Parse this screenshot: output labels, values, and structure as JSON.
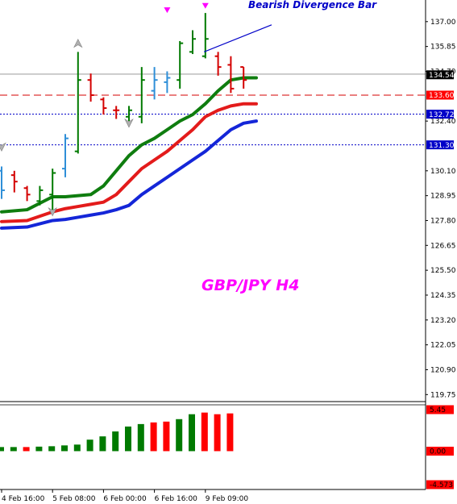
{
  "colors": {
    "background": "#ffffff",
    "axis": "#000000",
    "bull_bar": "#007a00",
    "bear_bar": "#d40000",
    "neutral_bar": "#2f8fd8",
    "ma_green": "#0f7d0f",
    "ma_red": "#e31b1b",
    "ma_blue": "#1426d8",
    "dashed_red": "#d40000",
    "dotted_blue": "#0000c8",
    "annotation": "#0000c8",
    "title": "#ff00ff",
    "osc_green": "#007a00",
    "osc_red": "#ff0000",
    "price_tag": "#000000",
    "tag_red": "#ff0000",
    "tag_blue": "#0000c8"
  },
  "chart_data": [
    {
      "type": "line",
      "panel": "price",
      "title": "GBP/JPY H4",
      "annotation": "Bearish Divergence Bar",
      "ylim": [
        119.5,
        138.0
      ],
      "y_ticks": [
        "137.00",
        "135.85",
        "134.70",
        "132.40",
        "130.10",
        "128.95",
        "127.80",
        "126.65",
        "125.50",
        "124.35",
        "123.20",
        "122.05",
        "120.90",
        "119.75"
      ],
      "x_ticks": [
        "4 Feb 16:00",
        "5 Feb 08:00",
        "6 Feb 00:00",
        "6 Feb 16:00",
        "9 Feb 09:00"
      ],
      "price_tags": [
        {
          "label": "134.54",
          "value": 134.54,
          "style": "current"
        },
        {
          "label": "133.60",
          "value": 133.6,
          "style": "red"
        },
        {
          "label": "132.72",
          "value": 132.72,
          "style": "blue"
        },
        {
          "label": "131.30",
          "value": 131.3,
          "style": "blue"
        }
      ],
      "bars": [
        {
          "o": 130.1,
          "h": 130.3,
          "l": 128.8,
          "c": 129.2,
          "color": "neutral"
        },
        {
          "o": 129.9,
          "h": 130.1,
          "l": 129.1,
          "c": 129.6,
          "color": "bear"
        },
        {
          "o": 129.3,
          "h": 129.4,
          "l": 128.7,
          "c": 129.0,
          "color": "bear"
        },
        {
          "o": 128.7,
          "h": 129.4,
          "l": 128.5,
          "c": 129.2,
          "color": "bull"
        },
        {
          "o": 129.0,
          "h": 130.2,
          "l": 128.3,
          "c": 130.0,
          "color": "bull"
        },
        {
          "o": 130.2,
          "h": 131.8,
          "l": 129.8,
          "c": 131.6,
          "color": "neutral"
        },
        {
          "o": 131.0,
          "h": 135.6,
          "l": 130.9,
          "c": 134.3,
          "color": "bull"
        },
        {
          "o": 134.3,
          "h": 134.6,
          "l": 133.3,
          "c": 133.6,
          "color": "bear"
        },
        {
          "o": 133.4,
          "h": 133.5,
          "l": 132.7,
          "c": 133.0,
          "color": "bear"
        },
        {
          "o": 132.9,
          "h": 133.1,
          "l": 132.5,
          "c": 132.9,
          "color": "bear"
        },
        {
          "o": 132.6,
          "h": 133.1,
          "l": 132.4,
          "c": 132.9,
          "color": "bull"
        },
        {
          "o": 132.6,
          "h": 134.9,
          "l": 132.3,
          "c": 134.3,
          "color": "bull"
        },
        {
          "o": 133.8,
          "h": 134.9,
          "l": 133.4,
          "c": 134.3,
          "color": "neutral"
        },
        {
          "o": 134.2,
          "h": 134.7,
          "l": 133.7,
          "c": 134.4,
          "color": "neutral"
        },
        {
          "o": 134.3,
          "h": 136.1,
          "l": 133.9,
          "c": 136.0,
          "color": "bull"
        },
        {
          "o": 135.6,
          "h": 136.6,
          "l": 135.5,
          "c": 136.2,
          "color": "bull"
        },
        {
          "o": 135.4,
          "h": 137.4,
          "l": 135.3,
          "c": 136.2,
          "color": "bull"
        },
        {
          "o": 135.4,
          "h": 135.6,
          "l": 134.5,
          "c": 134.9,
          "color": "bear"
        },
        {
          "o": 135.0,
          "h": 135.4,
          "l": 133.7,
          "c": 133.9,
          "color": "bear"
        },
        {
          "o": 134.9,
          "h": 134.9,
          "l": 133.9,
          "c": 134.3,
          "color": "bear"
        }
      ],
      "series": [
        {
          "key": "ma_green",
          "x": [
            0,
            2,
            4,
            5,
            6,
            7,
            8,
            9,
            10,
            11,
            12,
            13,
            14,
            15,
            16,
            17,
            18,
            19,
            20
          ],
          "values": [
            128.2,
            128.3,
            128.9,
            128.9,
            128.95,
            129.0,
            129.4,
            130.1,
            130.8,
            131.3,
            131.6,
            132.0,
            132.4,
            132.7,
            133.2,
            133.8,
            134.3,
            134.4,
            134.4
          ]
        },
        {
          "key": "ma_red",
          "x": [
            0,
            2,
            4,
            5,
            6,
            7,
            8,
            9,
            10,
            11,
            12,
            13,
            14,
            15,
            16,
            17,
            18,
            19,
            20
          ],
          "values": [
            127.75,
            127.8,
            128.2,
            128.35,
            128.45,
            128.55,
            128.65,
            129.0,
            129.6,
            130.2,
            130.6,
            131.0,
            131.5,
            132.0,
            132.6,
            132.9,
            133.1,
            133.2,
            133.2
          ]
        },
        {
          "key": "ma_blue",
          "x": [
            0,
            2,
            4,
            5,
            6,
            7,
            8,
            9,
            10,
            11,
            12,
            13,
            14,
            15,
            16,
            17,
            18,
            19,
            20
          ],
          "values": [
            127.45,
            127.5,
            127.8,
            127.85,
            127.95,
            128.05,
            128.15,
            128.3,
            128.5,
            129.0,
            129.4,
            129.8,
            130.2,
            130.6,
            131.0,
            131.5,
            132.0,
            132.3,
            132.4
          ]
        }
      ],
      "fractals": [
        {
          "index": 0,
          "value": 131.2,
          "side": "down"
        },
        {
          "index": 6,
          "value": 136.0,
          "side": "up"
        },
        {
          "index": 10,
          "value": 132.3,
          "side": "down"
        },
        {
          "index": 4,
          "value": 128.2,
          "side": "down"
        }
      ],
      "arrow_markers": [
        {
          "index": 13,
          "value": 137.55
        },
        {
          "index": 16,
          "value": 137.75
        }
      ],
      "divergence_line": {
        "from_index": 15.9,
        "from_value": 135.6,
        "to_index": 21.2,
        "to_value": 136.85
      },
      "hlines": [
        {
          "value": 134.57,
          "style": "thin-gray"
        },
        {
          "value": 133.6,
          "style": "dashed-red"
        },
        {
          "value": 132.72,
          "style": "dotted-blue"
        },
        {
          "value": 131.3,
          "style": "dotted-blue"
        }
      ]
    },
    {
      "type": "bar",
      "panel": "oscillator",
      "ylim": [
        -4.573,
        5.45
      ],
      "y_ticks": [
        "5.45",
        "0.00",
        "-4.573"
      ],
      "values": [
        0.5,
        0.5,
        0.5,
        0.55,
        0.6,
        0.7,
        0.8,
        1.4,
        1.8,
        2.4,
        3.0,
        3.3,
        3.5,
        3.6,
        3.9,
        4.5,
        4.7,
        4.5,
        4.6
      ],
      "colors": [
        "green",
        "green",
        "red",
        "green",
        "green",
        "green",
        "green",
        "green",
        "green",
        "green",
        "green",
        "green",
        "red",
        "red",
        "green",
        "green",
        "red",
        "red",
        "red"
      ]
    }
  ]
}
